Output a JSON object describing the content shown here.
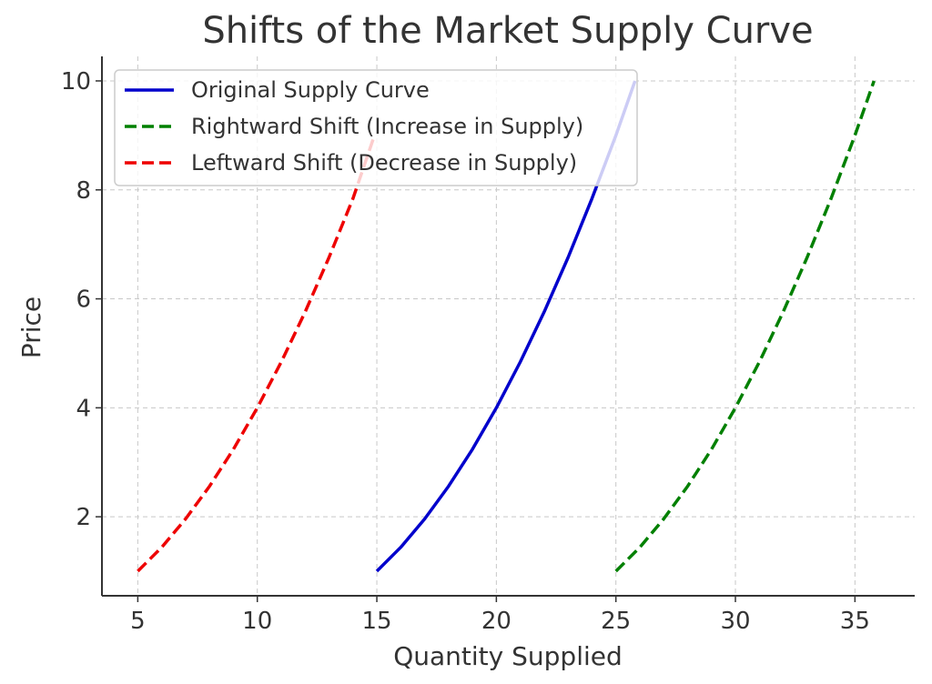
{
  "chart_data": {
    "type": "line",
    "title": "Shifts of the Market Supply Curve",
    "xlabel": "Quantity Supplied",
    "ylabel": "Price",
    "xlim": [
      3.5,
      37.5
    ],
    "ylim": [
      0.55,
      10.45
    ],
    "xticks": [
      5,
      10,
      15,
      20,
      25,
      30,
      35
    ],
    "yticks": [
      2,
      4,
      6,
      8,
      10
    ],
    "grid": true,
    "legend_position": "top-left",
    "series": [
      {
        "name": "Original Supply Curve",
        "color": "#0000cc",
        "style": "solid",
        "x": [
          15,
          16,
          17,
          18,
          19,
          20,
          21,
          22,
          23,
          24,
          25,
          25.8
        ],
        "y": [
          1.0,
          1.44,
          1.96,
          2.56,
          3.24,
          4.0,
          4.84,
          5.76,
          6.76,
          7.84,
          9.0,
          10.0
        ]
      },
      {
        "name": "Rightward Shift (Increase in Supply)",
        "color": "#008000",
        "style": "dashed",
        "x": [
          25,
          26,
          27,
          28,
          29,
          30,
          31,
          32,
          33,
          34,
          35,
          35.8
        ],
        "y": [
          1.0,
          1.44,
          1.96,
          2.56,
          3.24,
          4.0,
          4.84,
          5.76,
          6.76,
          7.84,
          9.0,
          10.0
        ]
      },
      {
        "name": "Leftward Shift (Decrease in Supply)",
        "color": "#ee0000",
        "style": "dashed",
        "x": [
          5,
          6,
          7,
          8,
          9,
          10,
          11,
          12,
          13,
          14,
          14.9
        ],
        "y": [
          1.0,
          1.44,
          1.96,
          2.56,
          3.24,
          4.0,
          4.84,
          5.76,
          6.76,
          7.84,
          9.0
        ]
      }
    ]
  }
}
